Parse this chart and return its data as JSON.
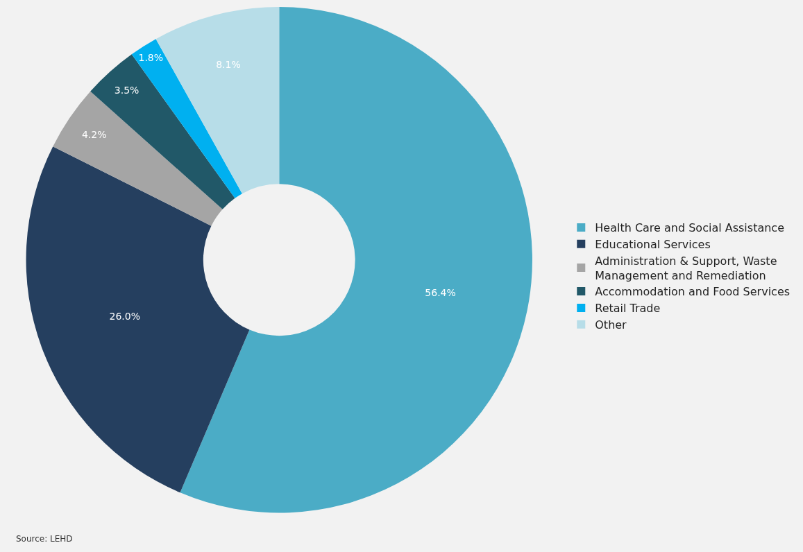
{
  "chart_data": {
    "type": "donut",
    "categories": [
      "Health Care and Social Assistance",
      "Educational Services",
      "Administration & Support, Waste Management and Remediation",
      "Accommodation and Food Services",
      "Retail Trade",
      "Other"
    ],
    "values": [
      56.4,
      26.0,
      4.2,
      3.5,
      1.8,
      8.1
    ],
    "value_labels": [
      "56.4%",
      "26.0%",
      "4.2%",
      "3.5%",
      "1.8%",
      "8.1%"
    ],
    "colors": [
      "#4bacc6",
      "#253f5f",
      "#a5a5a5",
      "#215868",
      "#00b0f0",
      "#b7dde8"
    ],
    "legend": "right",
    "annotations": [
      "Source: LEHD"
    ]
  }
}
